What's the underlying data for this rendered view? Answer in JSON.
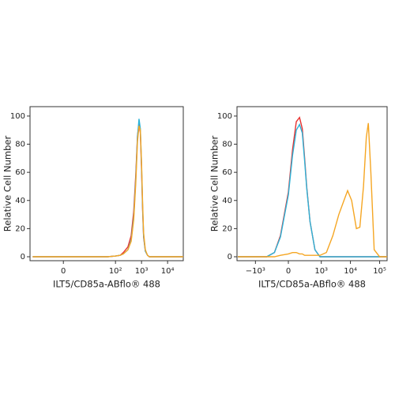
{
  "chart_data": [
    {
      "type": "line",
      "xscale": "biexponential",
      "xlabel": "ILT5/CD85a-ABflo® 488",
      "ylabel": "Relative Cell Number",
      "xlim": [
        -19,
        40000
      ],
      "ylim": [
        0,
        105
      ],
      "xticks": [
        {
          "value": 0,
          "label": "0"
        },
        {
          "value": 100,
          "label": "10²"
        },
        {
          "value": 1000,
          "label": "10³"
        },
        {
          "value": 10000,
          "label": "10⁴"
        }
      ],
      "yticks": [
        0,
        20,
        40,
        60,
        80,
        100
      ],
      "x": [
        -15,
        0,
        20,
        50,
        100,
        150,
        200,
        300,
        400,
        500,
        600,
        700,
        800,
        900,
        1000,
        1100,
        1200,
        1400,
        1700,
        2000,
        5000,
        40000
      ],
      "series": [
        {
          "name": "red",
          "color": "#e8312f",
          "values": [
            0,
            0,
            0,
            0,
            0.5,
            1,
            3,
            7,
            15,
            32,
            58,
            86,
            95,
            88,
            62,
            33,
            14,
            4,
            1,
            0,
            0,
            0
          ]
        },
        {
          "name": "blue",
          "color": "#2bb3d8",
          "values": [
            0,
            0,
            0,
            0,
            0.5,
            1,
            2,
            5,
            12,
            28,
            55,
            85,
            98,
            91,
            65,
            35,
            15,
            4,
            1,
            0,
            0,
            0
          ]
        },
        {
          "name": "orange",
          "color": "#f5a623",
          "values": [
            0,
            0,
            0,
            0,
            0.5,
            1,
            2,
            5,
            11,
            26,
            52,
            82,
            93,
            90,
            67,
            38,
            17,
            5,
            1,
            0,
            0,
            0
          ]
        }
      ]
    },
    {
      "type": "line",
      "xscale": "biexponential",
      "xlabel": "ILT5/CD85a-ABflo® 488",
      "ylabel": "Relative Cell Number",
      "xlim": [
        -4300,
        180000
      ],
      "ylim": [
        0,
        105
      ],
      "xticks": [
        {
          "value": -1000,
          "label": "−10³"
        },
        {
          "value": 0,
          "label": "0"
        },
        {
          "value": 1000,
          "label": "10³"
        },
        {
          "value": 10000,
          "label": "10⁴"
        },
        {
          "value": 100000,
          "label": "10⁵"
        }
      ],
      "yticks": [
        0,
        20,
        40,
        60,
        80,
        100
      ],
      "x": [
        -4000,
        -1000,
        -400,
        -200,
        -100,
        0,
        50,
        100,
        150,
        200,
        250,
        300,
        400,
        600,
        900,
        1500,
        2500,
        4000,
        6000,
        8000,
        11000,
        16000,
        21000,
        28000,
        35000,
        41000,
        50000,
        65000,
        100000,
        180000
      ],
      "series": [
        {
          "name": "red",
          "color": "#e8312f",
          "values": [
            0,
            0,
            0,
            3,
            15,
            46,
            76,
            96,
            99,
            91,
            70,
            50,
            25,
            5,
            0,
            0,
            0,
            0,
            0,
            0,
            0,
            0,
            0,
            0,
            0,
            0,
            0,
            0,
            0,
            0
          ]
        },
        {
          "name": "blue",
          "color": "#2bb3d8",
          "values": [
            0,
            0,
            0,
            3,
            14,
            44,
            72,
            90,
            94,
            88,
            68,
            49,
            25,
            5,
            0,
            0,
            0,
            0,
            0,
            0,
            0,
            0,
            0,
            0,
            0,
            0,
            0,
            0,
            0,
            0
          ]
        },
        {
          "name": "orange",
          "color": "#f5a623",
          "values": [
            0,
            0,
            0,
            0,
            1,
            2,
            3,
            3,
            2,
            2,
            1,
            1,
            1,
            1,
            1,
            3,
            15,
            30,
            40,
            47,
            40,
            20,
            21,
            50,
            85,
            95,
            60,
            5,
            0,
            0
          ]
        }
      ]
    }
  ]
}
